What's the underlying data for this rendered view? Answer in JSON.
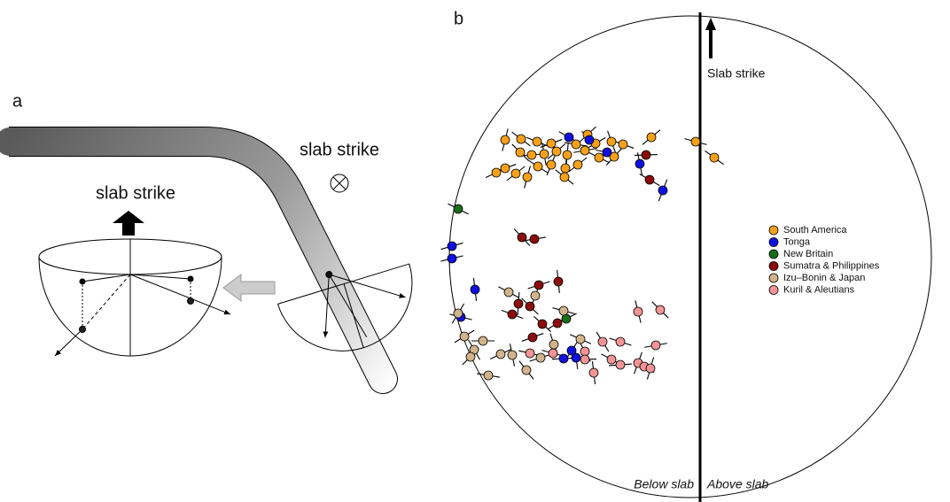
{
  "panel_a": {
    "label": "a",
    "top_caption": "slab strike",
    "right_caption": "slab strike"
  },
  "panel_b": {
    "label": "b",
    "arrow_caption": "Slab strike",
    "below_caption": "Below slab",
    "above_caption": "Above slab",
    "legend": [
      {
        "name": "South America",
        "color": "#f7a11a"
      },
      {
        "name": "Tonga",
        "color": "#1010e0"
      },
      {
        "name": "New Britain",
        "color": "#1a6e1a"
      },
      {
        "name": "Sumatra & Philippines",
        "color": "#8b0d0d"
      },
      {
        "name": "Izu–Bonin & Japan",
        "color": "#d2b48c"
      },
      {
        "name": "Kuril & Aleutians",
        "color": "#f29496"
      }
    ]
  }
}
